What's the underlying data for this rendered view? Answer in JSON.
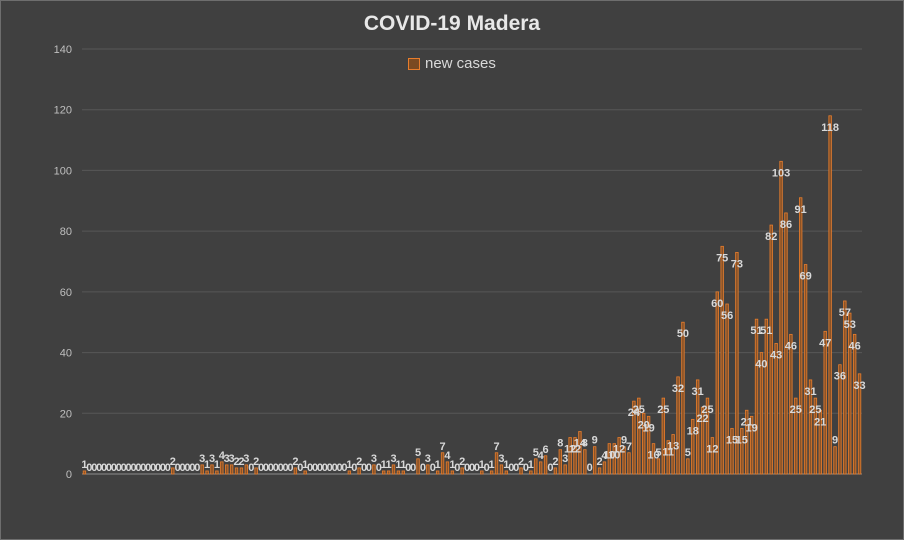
{
  "chart_data": {
    "type": "bar",
    "title": "COVID-19 Madera",
    "xlabel": "",
    "ylabel": "",
    "ylim": [
      0,
      140
    ],
    "yticks": [
      "0",
      "20",
      "40",
      "60",
      "80",
      "100",
      "120",
      "140"
    ],
    "grid": true,
    "legend_position": "top",
    "bar_color": "#e87d2c",
    "bar_fill": "#8a5328",
    "series": [
      {
        "name": "new cases",
        "values": [
          1,
          0,
          0,
          0,
          0,
          0,
          0,
          0,
          0,
          0,
          0,
          0,
          0,
          0,
          0,
          0,
          0,
          0,
          2,
          0,
          0,
          0,
          0,
          0,
          3,
          1,
          3,
          1,
          4,
          3,
          3,
          2,
          2,
          3,
          0,
          2,
          0,
          0,
          0,
          0,
          0,
          0,
          0,
          2,
          0,
          1,
          0,
          0,
          0,
          0,
          0,
          0,
          0,
          0,
          1,
          0,
          2,
          0,
          0,
          3,
          0,
          1,
          1,
          3,
          1,
          1,
          0,
          0,
          5,
          0,
          3,
          0,
          1,
          7,
          4,
          1,
          0,
          2,
          0,
          0,
          0,
          1,
          0,
          1,
          7,
          3,
          1,
          0,
          0,
          2,
          0,
          1,
          5,
          4,
          6,
          0,
          2,
          8,
          3,
          12,
          12,
          14,
          8,
          0,
          9,
          2,
          4,
          10,
          10,
          12,
          9,
          7,
          24,
          25,
          20,
          19,
          10,
          5,
          25,
          11,
          13,
          32,
          50,
          5,
          18,
          31,
          22,
          25,
          12,
          60,
          75,
          56,
          15,
          73,
          15,
          21,
          19,
          51,
          40,
          51,
          82,
          43,
          103,
          86,
          46,
          25,
          91,
          69,
          31,
          25,
          21,
          47,
          118,
          9,
          36,
          57,
          53,
          46,
          33
        ]
      }
    ]
  }
}
